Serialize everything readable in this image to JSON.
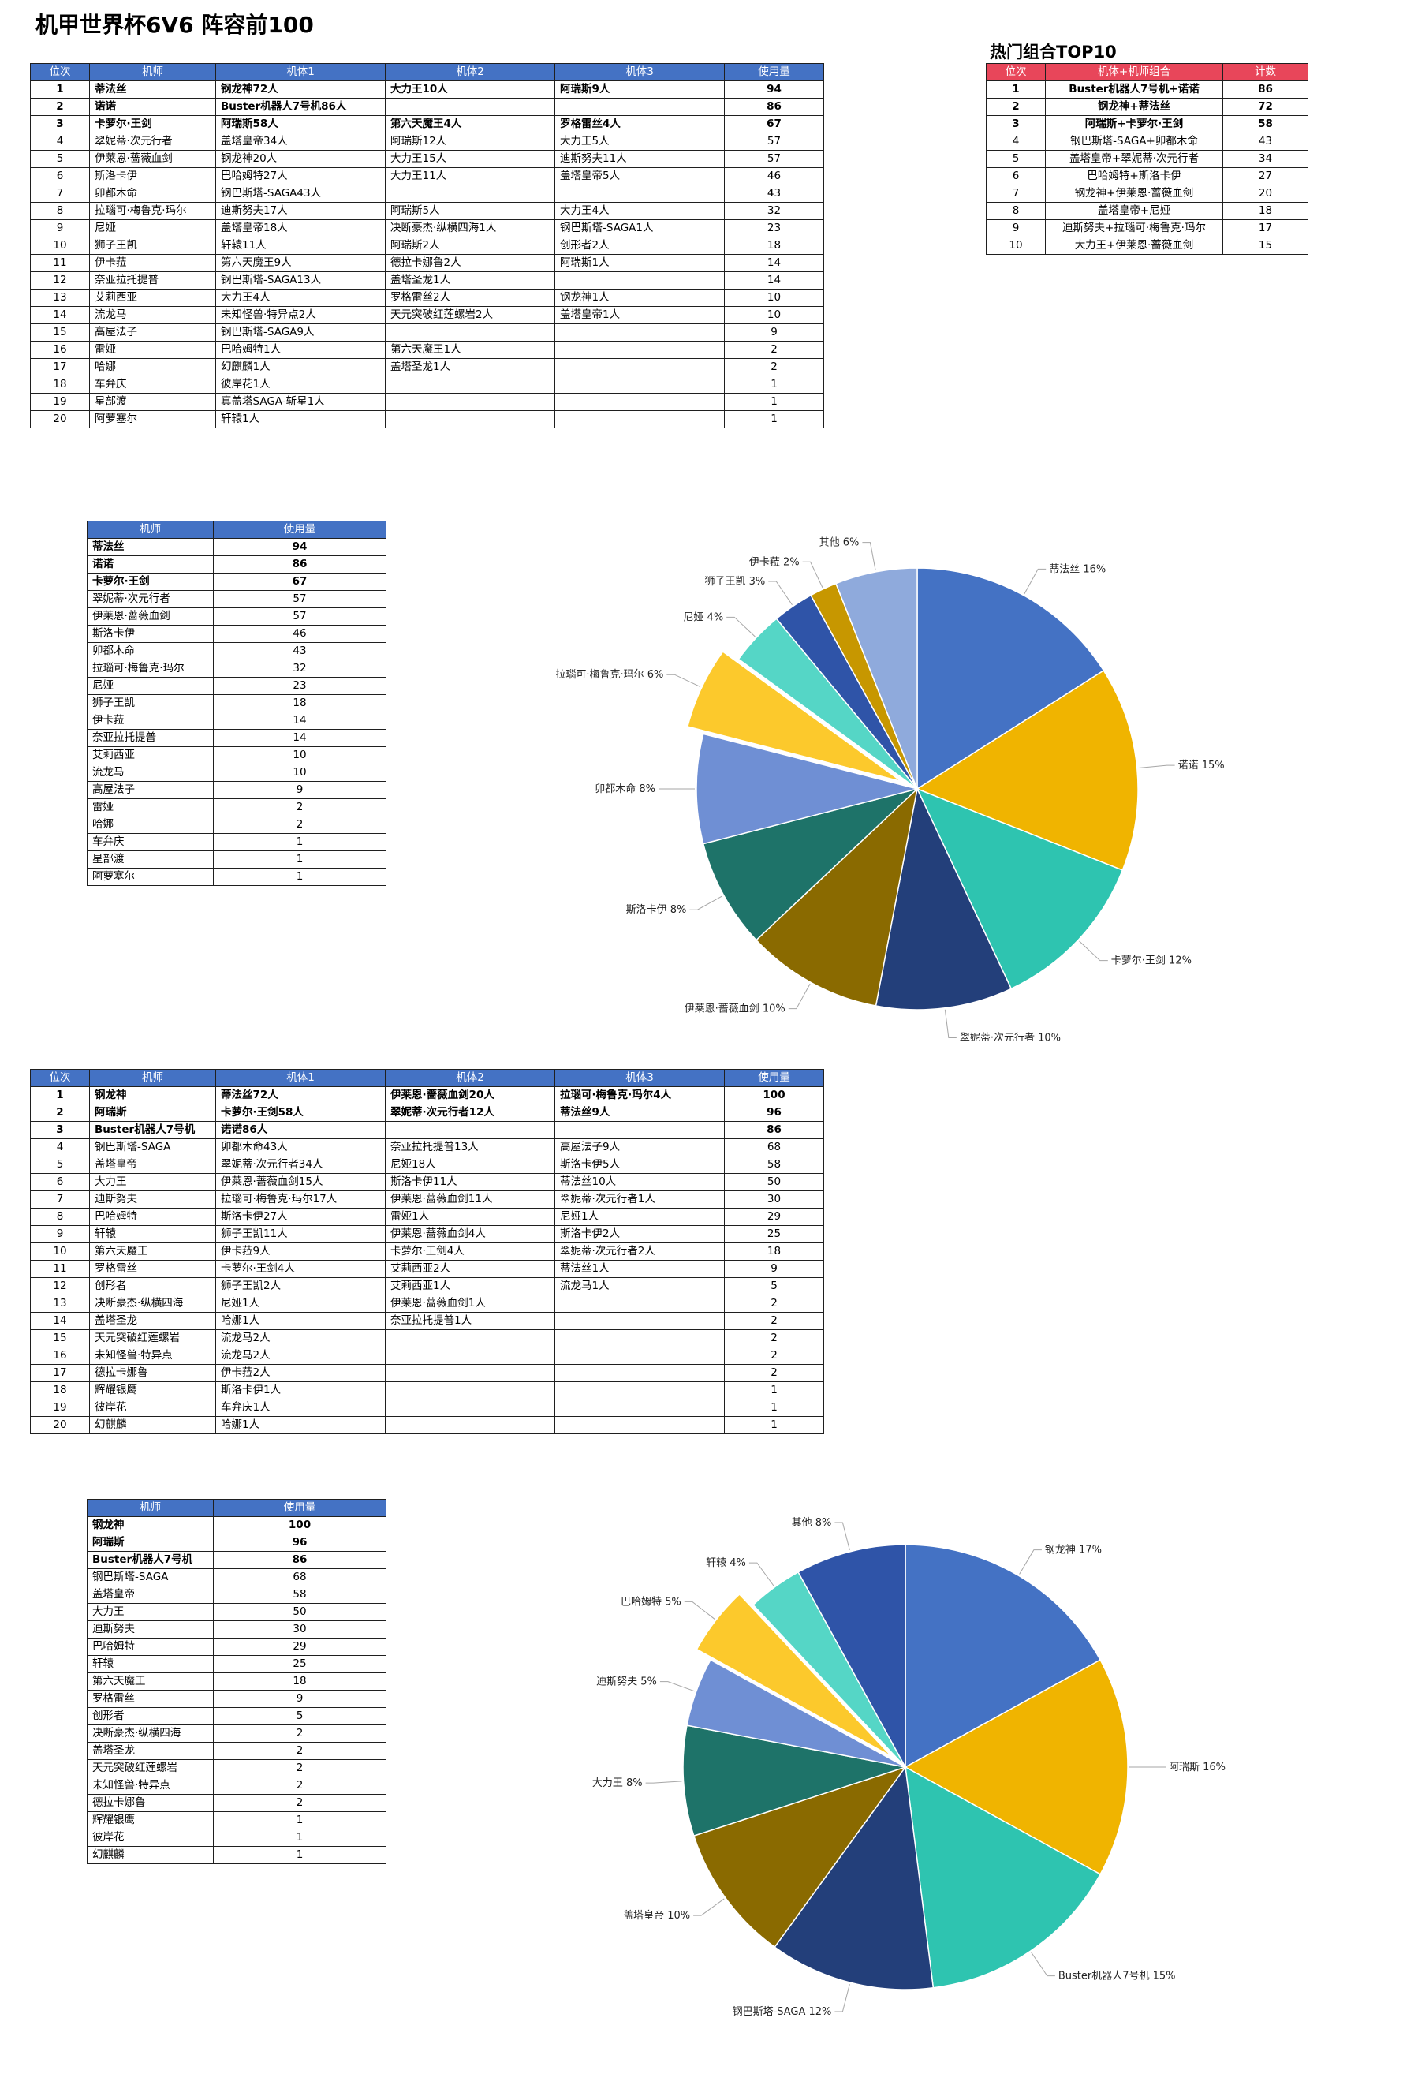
{
  "title": "机甲世界杯6V6 阵容前100",
  "top10_title": "热门组合TOP10",
  "table1": {
    "headers": [
      "位次",
      "机师",
      "机体1",
      "机体2",
      "机体3",
      "使用量"
    ],
    "rows": [
      [
        "1",
        "蒂法丝",
        "钢龙神72人",
        "大力王10人",
        "阿瑞斯9人",
        "94"
      ],
      [
        "2",
        "诺诺",
        "Buster机器人7号机86人",
        "",
        "",
        "86"
      ],
      [
        "3",
        "卡萝尔·王剑",
        "阿瑞斯58人",
        "第六天魔王4人",
        "罗格雷丝4人",
        "67"
      ],
      [
        "4",
        "翠妮蒂·次元行者",
        "盖塔皇帝34人",
        "阿瑞斯12人",
        "大力王5人",
        "57"
      ],
      [
        "5",
        "伊莱恩·蔷薇血剑",
        "钢龙神20人",
        "大力王15人",
        "迪斯努夫11人",
        "57"
      ],
      [
        "6",
        "斯洛卡伊",
        "巴哈姆特27人",
        "大力王11人",
        "盖塔皇帝5人",
        "46"
      ],
      [
        "7",
        "卯都木命",
        "钢巴斯塔-SAGA43人",
        "",
        "",
        "43"
      ],
      [
        "8",
        "拉瑙可·梅鲁克·玛尔",
        "迪斯努夫17人",
        "阿瑞斯5人",
        "大力王4人",
        "32"
      ],
      [
        "9",
        "尼娅",
        "盖塔皇帝18人",
        "决断豪杰·纵横四海1人",
        "钢巴斯塔-SAGA1人",
        "23"
      ],
      [
        "10",
        "狮子王凯",
        "轩辕11人",
        "阿瑞斯2人",
        "创形者2人",
        "18"
      ],
      [
        "11",
        "伊卡菈",
        "第六天魔王9人",
        "德拉卡娜鲁2人",
        "阿瑞斯1人",
        "14"
      ],
      [
        "12",
        "奈亚拉托提普",
        "钢巴斯塔-SAGA13人",
        "盖塔圣龙1人",
        "",
        "14"
      ],
      [
        "13",
        "艾莉西亚",
        "大力王4人",
        "罗格雷丝2人",
        "钢龙神1人",
        "10"
      ],
      [
        "14",
        "流龙马",
        "未知怪兽·特异点2人",
        "天元突破红莲螺岩2人",
        "盖塔皇帝1人",
        "10"
      ],
      [
        "15",
        "高屋法子",
        "钢巴斯塔-SAGA9人",
        "",
        "",
        "9"
      ],
      [
        "16",
        "雷娅",
        "巴哈姆特1人",
        "第六天魔王1人",
        "",
        "2"
      ],
      [
        "17",
        "哈娜",
        "幻麒麟1人",
        "盖塔圣龙1人",
        "",
        "2"
      ],
      [
        "18",
        "车弁庆",
        "彼岸花1人",
        "",
        "",
        "1"
      ],
      [
        "19",
        "星部渡",
        "真盖塔SAGA-斩星1人",
        "",
        "",
        "1"
      ],
      [
        "20",
        "阿萝塞尔",
        "轩辕1人",
        "",
        "",
        "1"
      ]
    ]
  },
  "top10": {
    "headers": [
      "位次",
      "机体+机师组合",
      "计数"
    ],
    "rows": [
      [
        "1",
        "Buster机器人7号机+诺诺",
        "86"
      ],
      [
        "2",
        "钢龙神+蒂法丝",
        "72"
      ],
      [
        "3",
        "阿瑞斯+卡萝尔·王剑",
        "58"
      ],
      [
        "4",
        "钢巴斯塔-SAGA+卯都木命",
        "43"
      ],
      [
        "5",
        "盖塔皇帝+翠妮蒂·次元行者",
        "34"
      ],
      [
        "6",
        "巴哈姆特+斯洛卡伊",
        "27"
      ],
      [
        "7",
        "钢龙神+伊莱恩·蔷薇血剑",
        "20"
      ],
      [
        "8",
        "盖塔皇帝+尼娅",
        "18"
      ],
      [
        "9",
        "迪斯努夫+拉瑙可·梅鲁克·玛尔",
        "17"
      ],
      [
        "10",
        "大力王+伊莱恩·蔷薇血剑",
        "15"
      ]
    ]
  },
  "pilot_summary": {
    "headers": [
      "机师",
      "使用量"
    ],
    "rows": [
      [
        "蒂法丝",
        "94"
      ],
      [
        "诺诺",
        "86"
      ],
      [
        "卡萝尔·王剑",
        "67"
      ],
      [
        "翠妮蒂·次元行者",
        "57"
      ],
      [
        "伊莱恩·蔷薇血剑",
        "57"
      ],
      [
        "斯洛卡伊",
        "46"
      ],
      [
        "卯都木命",
        "43"
      ],
      [
        "拉瑙可·梅鲁克·玛尔",
        "32"
      ],
      [
        "尼娅",
        "23"
      ],
      [
        "狮子王凯",
        "18"
      ],
      [
        "伊卡菈",
        "14"
      ],
      [
        "奈亚拉托提普",
        "14"
      ],
      [
        "艾莉西亚",
        "10"
      ],
      [
        "流龙马",
        "10"
      ],
      [
        "高屋法子",
        "9"
      ],
      [
        "雷娅",
        "2"
      ],
      [
        "哈娜",
        "2"
      ],
      [
        "车弁庆",
        "1"
      ],
      [
        "星部渡",
        "1"
      ],
      [
        "阿萝塞尔",
        "1"
      ]
    ]
  },
  "table2": {
    "headers": [
      "位次",
      "机师",
      "机体1",
      "机体2",
      "机体3",
      "使用量"
    ],
    "rows": [
      [
        "1",
        "钢龙神",
        "蒂法丝72人",
        "伊莱恩·蔷薇血剑20人",
        "拉瑙可·梅鲁克·玛尔4人",
        "100"
      ],
      [
        "2",
        "阿瑞斯",
        "卡萝尔·王剑58人",
        "翠妮蒂·次元行者12人",
        "蒂法丝9人",
        "96"
      ],
      [
        "3",
        "Buster机器人7号机",
        "诺诺86人",
        "",
        "",
        "86"
      ],
      [
        "4",
        "钢巴斯塔-SAGA",
        "卯都木命43人",
        "奈亚拉托提普13人",
        "高屋法子9人",
        "68"
      ],
      [
        "5",
        "盖塔皇帝",
        "翠妮蒂·次元行者34人",
        "尼娅18人",
        "斯洛卡伊5人",
        "58"
      ],
      [
        "6",
        "大力王",
        "伊莱恩·蔷薇血剑15人",
        "斯洛卡伊11人",
        "蒂法丝10人",
        "50"
      ],
      [
        "7",
        "迪斯努夫",
        "拉瑙可·梅鲁克·玛尔17人",
        "伊莱恩·蔷薇血剑11人",
        "翠妮蒂·次元行者1人",
        "30"
      ],
      [
        "8",
        "巴哈姆特",
        "斯洛卡伊27人",
        "雷娅1人",
        "尼娅1人",
        "29"
      ],
      [
        "9",
        "轩辕",
        "狮子王凯11人",
        "伊莱恩·蔷薇血剑4人",
        "斯洛卡伊2人",
        "25"
      ],
      [
        "10",
        "第六天魔王",
        "伊卡菈9人",
        "卡萝尔·王剑4人",
        "翠妮蒂·次元行者2人",
        "18"
      ],
      [
        "11",
        "罗格雷丝",
        "卡萝尔·王剑4人",
        "艾莉西亚2人",
        "蒂法丝1人",
        "9"
      ],
      [
        "12",
        "创形者",
        "狮子王凯2人",
        "艾莉西亚1人",
        "流龙马1人",
        "5"
      ],
      [
        "13",
        "决断豪杰·纵横四海",
        "尼娅1人",
        "伊莱恩·蔷薇血剑1人",
        "",
        "2"
      ],
      [
        "14",
        "盖塔圣龙",
        "哈娜1人",
        "奈亚拉托提普1人",
        "",
        "2"
      ],
      [
        "15",
        "天元突破红莲螺岩",
        "流龙马2人",
        "",
        "",
        "2"
      ],
      [
        "16",
        "未知怪兽·特异点",
        "流龙马2人",
        "",
        "",
        "2"
      ],
      [
        "17",
        "德拉卡娜鲁",
        "伊卡菈2人",
        "",
        "",
        "2"
      ],
      [
        "18",
        "辉耀银鹰",
        "斯洛卡伊1人",
        "",
        "",
        "1"
      ],
      [
        "19",
        "彼岸花",
        "车弁庆1人",
        "",
        "",
        "1"
      ],
      [
        "20",
        "幻麒麟",
        "哈娜1人",
        "",
        "",
        "1"
      ]
    ]
  },
  "mech_summary": {
    "headers": [
      "机师",
      "使用量"
    ],
    "rows": [
      [
        "钢龙神",
        "100"
      ],
      [
        "阿瑞斯",
        "96"
      ],
      [
        "Buster机器人7号机",
        "86"
      ],
      [
        "钢巴斯塔-SAGA",
        "68"
      ],
      [
        "盖塔皇帝",
        "58"
      ],
      [
        "大力王",
        "50"
      ],
      [
        "迪斯努夫",
        "30"
      ],
      [
        "巴哈姆特",
        "29"
      ],
      [
        "轩辕",
        "25"
      ],
      [
        "第六天魔王",
        "18"
      ],
      [
        "罗格雷丝",
        "9"
      ],
      [
        "创形者",
        "5"
      ],
      [
        "决断豪杰·纵横四海",
        "2"
      ],
      [
        "盖塔圣龙",
        "2"
      ],
      [
        "天元突破红莲螺岩",
        "2"
      ],
      [
        "未知怪兽·特异点",
        "2"
      ],
      [
        "德拉卡娜鲁",
        "2"
      ],
      [
        "辉耀银鹰",
        "1"
      ],
      [
        "彼岸花",
        "1"
      ],
      [
        "幻麒麟",
        "1"
      ]
    ]
  },
  "chart_data": [
    {
      "type": "pie",
      "title": "",
      "categories": [
        "蒂法丝",
        "诺诺",
        "卡萝尔·王剑",
        "翠妮蒂·次元行者",
        "伊莱恩·蔷薇血剑",
        "斯洛卡伊",
        "卯都木命",
        "拉瑙可·梅鲁克·玛尔",
        "尼娅",
        "狮子王凯",
        "伊卡菈",
        "其他"
      ],
      "values": [
        16,
        15,
        12,
        10,
        10,
        8,
        8,
        6,
        4,
        3,
        2,
        6
      ],
      "labels": [
        "蒂法丝 16%",
        "诺诺 15%",
        "卡萝尔·王剑 12%",
        "翠妮蒂·次元行者 10%",
        "伊莱恩·蔷薇血剑 10%",
        "斯洛卡伊 8%",
        "卯都木命 8%",
        "拉瑙可·梅鲁克·玛尔 6%",
        "尼娅 4%",
        "狮子王凯 3%",
        "伊卡菈 2%",
        "其他 6%"
      ],
      "colors": [
        "#4472c4",
        "#f0b400",
        "#2ec4b0",
        "#233f7a",
        "#8a6a00",
        "#1e7369",
        "#6f8fd4",
        "#fcc92c",
        "#55d6c6",
        "#2f54a8",
        "#c79700",
        "#8faadc"
      ],
      "exploded": [
        "拉瑙可·梅鲁克·玛尔"
      ]
    },
    {
      "type": "pie",
      "title": "",
      "categories": [
        "钢龙神",
        "阿瑞斯",
        "Buster机器人7号机",
        "钢巴斯塔-SAGA",
        "盖塔皇帝",
        "大力王",
        "迪斯努夫",
        "巴哈姆特",
        "轩辕",
        "其他"
      ],
      "values": [
        17,
        16,
        15,
        12,
        10,
        8,
        5,
        5,
        4,
        8
      ],
      "labels": [
        "钢龙神 17%",
        "阿瑞斯 16%",
        "Buster机器人7号机 15%",
        "钢巴斯塔-SAGA 12%",
        "盖塔皇帝 10%",
        "大力王 8%",
        "迪斯努夫 5%",
        "巴哈姆特 5%",
        "轩辕 4%",
        "其他 8%"
      ],
      "colors": [
        "#4472c4",
        "#f0b400",
        "#2ec4b0",
        "#233f7a",
        "#8a6a00",
        "#1e7369",
        "#6f8fd4",
        "#fcc92c",
        "#55d6c6",
        "#2f54a8"
      ],
      "exploded": [
        "巴哈姆特"
      ]
    }
  ]
}
